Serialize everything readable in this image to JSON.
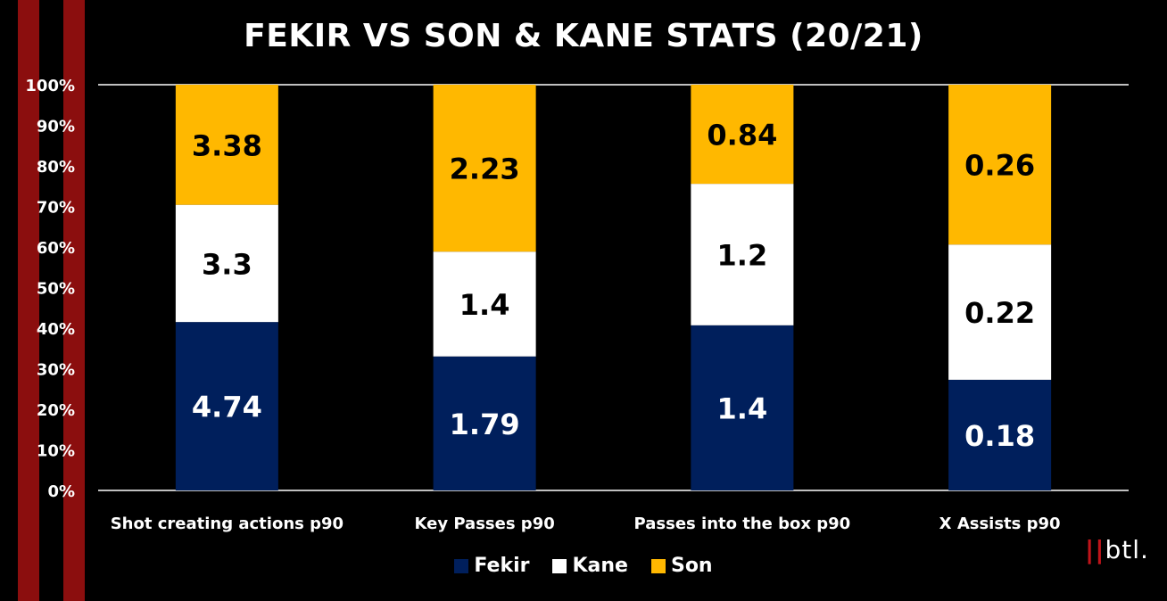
{
  "chart_data": {
    "type": "bar",
    "stacked": "percent",
    "title": "FEKIR VS SON & KANE STATS (20/21)",
    "categories": [
      "Shot creating actions p90",
      "Key Passes p90",
      "Passes into the box p90",
      "X Assists p90"
    ],
    "series": [
      {
        "name": "Fekir",
        "color": "#001f5c",
        "label_color": "#ffffff",
        "values": [
          4.74,
          1.79,
          1.4,
          0.18
        ]
      },
      {
        "name": "Kane",
        "color": "#ffffff",
        "label_color": "#000000",
        "values": [
          3.3,
          1.4,
          1.2,
          0.22
        ]
      },
      {
        "name": "Son",
        "color": "#ffb800",
        "label_color": "#000000",
        "values": [
          3.38,
          2.23,
          0.84,
          0.26
        ]
      }
    ],
    "y_ticks": [
      "0%",
      "10%",
      "20%",
      "30%",
      "40%",
      "50%",
      "60%",
      "70%",
      "80%",
      "90%",
      "100%"
    ],
    "ylim": [
      0,
      100
    ],
    "legend_position": "bottom"
  },
  "branding": {
    "logo_bars": "||",
    "logo_text": "btl."
  }
}
